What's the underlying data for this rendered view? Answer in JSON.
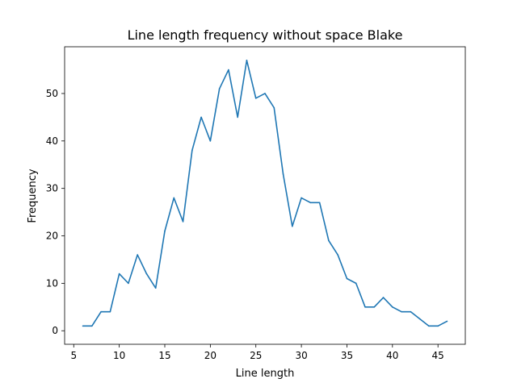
{
  "chart_data": {
    "type": "line",
    "title": "Line length frequency without space Blake",
    "xlabel": "Line length",
    "ylabel": "Frequency",
    "xlim": [
      4.0,
      48.0
    ],
    "ylim": [
      -2.85,
      59.85
    ],
    "xticks": [
      5,
      10,
      15,
      20,
      25,
      30,
      35,
      40,
      45
    ],
    "yticks": [
      0,
      10,
      20,
      30,
      40,
      50
    ],
    "grid": false,
    "color": "#1f77b4",
    "x": [
      6,
      7,
      8,
      9,
      10,
      11,
      12,
      13,
      14,
      15,
      16,
      17,
      18,
      19,
      20,
      21,
      22,
      23,
      24,
      25,
      26,
      27,
      28,
      29,
      30,
      31,
      32,
      33,
      34,
      35,
      36,
      37,
      38,
      39,
      40,
      41,
      42,
      43,
      44,
      45,
      46
    ],
    "y": [
      1,
      1,
      4,
      4,
      12,
      10,
      16,
      12,
      9,
      21,
      28,
      23,
      38,
      45,
      40,
      51,
      55,
      45,
      57,
      49,
      50,
      47,
      33,
      22,
      28,
      27,
      27,
      19,
      16,
      11,
      10,
      5,
      5,
      7,
      5,
      4,
      4,
      2.5,
      1,
      1,
      2
    ]
  }
}
